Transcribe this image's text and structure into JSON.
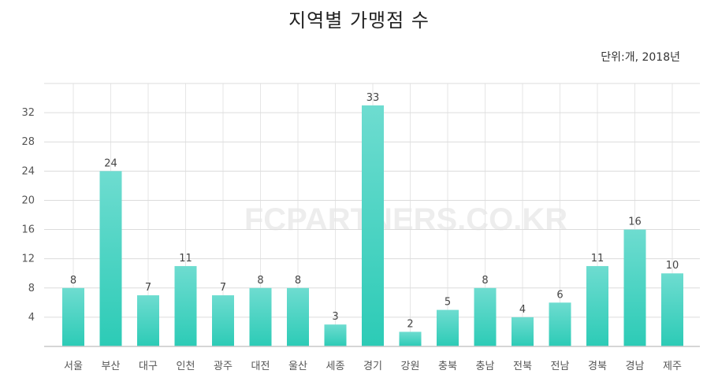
{
  "chart_data": {
    "type": "bar",
    "title": "지역별 가맹점 수",
    "subtitle": "단위:개, 2018년",
    "watermark": "FCPARTNERS.CO.KR",
    "categories": [
      "서울",
      "부산",
      "대구",
      "인천",
      "광주",
      "대전",
      "울산",
      "세종",
      "경기",
      "강원",
      "충북",
      "충남",
      "전북",
      "전남",
      "경북",
      "경남",
      "제주"
    ],
    "values": [
      8,
      24,
      7,
      11,
      7,
      8,
      8,
      3,
      33,
      2,
      5,
      8,
      4,
      6,
      11,
      16,
      10
    ],
    "yticks": [
      "4",
      "8",
      "12",
      "16",
      "20",
      "24",
      "28",
      "32"
    ],
    "ylim": [
      0,
      36
    ],
    "grid": true,
    "xlabel": "",
    "ylabel": "",
    "bar_color_top": "#6edcd0",
    "bar_color_bottom": "#2ccbb6"
  }
}
